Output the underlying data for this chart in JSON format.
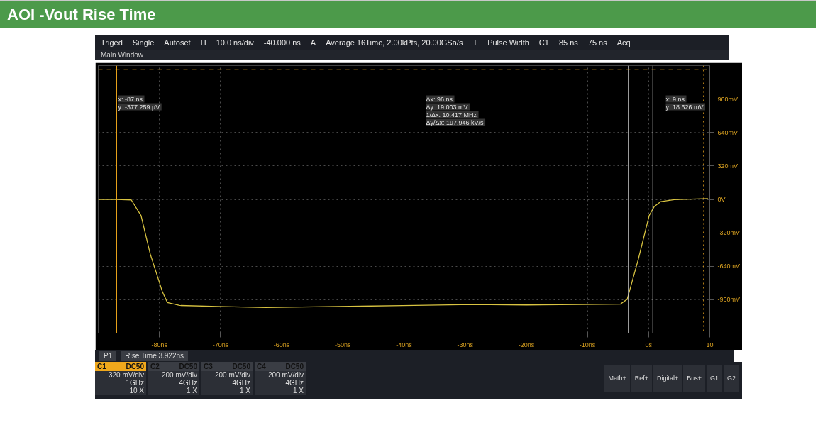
{
  "chart_data": {
    "type": "line",
    "title": "AOI -Vout Rise Time",
    "x": [
      -90,
      -87,
      -84.6,
      -83,
      -81.5,
      -79.5,
      -78.7,
      -76.7,
      -70.5,
      -62.6,
      -50.8,
      -40.2,
      -28.8,
      -20,
      -4.6,
      -3.5,
      -1.7,
      0.1,
      0.9,
      2,
      4.2,
      9.7
    ],
    "series": [
      {
        "color": "#d8c341",
        "values": [
          0,
          0,
          -5,
          -155,
          -522,
          -885,
          -987,
          -1015,
          -1025,
          -1035,
          -1025,
          -1016,
          -1006,
          -1010,
          -1002,
          -955,
          -576,
          -154,
          -70,
          -21,
          -2,
          8
        ]
      }
    ],
    "xlim": [
      -90,
      10
    ],
    "ylim": [
      -1280,
      1280
    ],
    "xticks": [
      {
        "value": -80,
        "label": "-80ns"
      },
      {
        "value": -70,
        "label": "-70ns"
      },
      {
        "value": -60,
        "label": "-60ns"
      },
      {
        "value": -50,
        "label": "-50ns"
      },
      {
        "value": -40,
        "label": "-40ns"
      },
      {
        "value": -30,
        "label": "-30ns"
      },
      {
        "value": -20,
        "label": "-20ns"
      },
      {
        "value": -10,
        "label": "-10ns"
      },
      {
        "value": 0,
        "label": "0s"
      },
      {
        "value": 10,
        "label": "10"
      }
    ],
    "yticks": [
      {
        "value": 960,
        "label": "960mV"
      },
      {
        "value": 640,
        "label": "640mV"
      },
      {
        "value": 320,
        "label": "320mV"
      },
      {
        "value": 0,
        "label": "0V"
      },
      {
        "value": -320,
        "label": "-320mV"
      },
      {
        "value": -640,
        "label": "-640mV"
      },
      {
        "value": -960,
        "label": "-960mV"
      }
    ],
    "grid": true,
    "line_style": "solid",
    "ref_lines": [
      {
        "axis": "x",
        "value": -87,
        "color": "#f0a81c",
        "line_style": "solid"
      },
      {
        "axis": "x",
        "value": -3.3,
        "color": "#d0d0d0",
        "line_style": "solid"
      },
      {
        "axis": "x",
        "value": 0.7,
        "color": "#d0d0d0",
        "line_style": "solid"
      },
      {
        "axis": "x",
        "value": 9,
        "color": "#f0a81c",
        "line_style": "dotted"
      },
      {
        "axis": "y",
        "value": 1240,
        "color": "#f0a81c",
        "line_style": "dashed"
      }
    ],
    "annotations": [
      "x:  -87 ns",
      "y:  -377.259 µV",
      "Δx:  96 ns",
      "Δy:  19.003 mV",
      "1/Δx:  10.417 MHz",
      "Δy/Δx:  197.946 kV/s",
      "x:  9 ns",
      "y:  18.626 mV",
      "P1",
      "Rise Time",
      "3.922ns",
      "Triged",
      "Single",
      "Autoset",
      "H",
      "10.0 ns/div",
      "-40.000 ns",
      "A",
      "Average 16Time, 2.00kPts, 20.00GSa/s",
      "T",
      "Pulse Width",
      "C1",
      "85 ns",
      "75 ns",
      "Acq",
      "Main Window",
      "C1",
      "DC50",
      "320 mV/div",
      "1GHz",
      "10 X",
      "C2",
      "DC50",
      "200 mV/div",
      "4GHz",
      "1 X",
      "C3",
      "DC50",
      "200 mV/div",
      "4GHz",
      "1 X",
      "C4",
      "DC50",
      "200 mV/div",
      "4GHz",
      "1 X",
      "Math+",
      "Ref+",
      "Digital+",
      "Bus+",
      "G1",
      "G2"
    ]
  }
}
